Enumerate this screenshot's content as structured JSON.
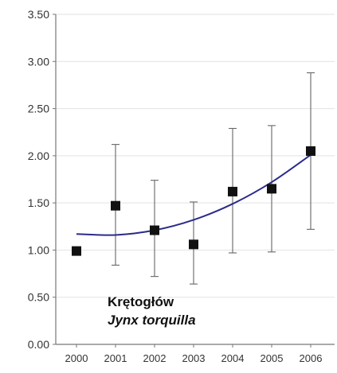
{
  "chart_data": {
    "type": "scatter",
    "x": [
      "2000",
      "2001",
      "2002",
      "2003",
      "2004",
      "2005",
      "2006"
    ],
    "series": [
      {
        "values": [
          0.99,
          1.47,
          1.21,
          1.06,
          1.62,
          1.65,
          2.05
        ],
        "error_low": [
          null,
          0.84,
          0.72,
          0.64,
          0.97,
          0.98,
          1.22
        ],
        "error_high": [
          null,
          2.12,
          1.74,
          1.51,
          2.29,
          2.32,
          2.88
        ],
        "marker": "square",
        "color": "#111111"
      }
    ],
    "trendline": {
      "type": "polynomial",
      "values": [
        1.17,
        1.16,
        1.21,
        1.32,
        1.49,
        1.72,
        2.01
      ],
      "color": "#2b2b8a"
    },
    "annotations": [
      "Krętogłów",
      "Jynx torquilla"
    ],
    "y_ticks": [
      "0.00",
      "0.50",
      "1.00",
      "1.50",
      "2.00",
      "2.50",
      "3.00",
      "3.50"
    ],
    "ylim": [
      0,
      3.5
    ],
    "grid": true,
    "grid_color": "#e2e2e2",
    "title": "",
    "xlabel": "",
    "ylabel": ""
  }
}
